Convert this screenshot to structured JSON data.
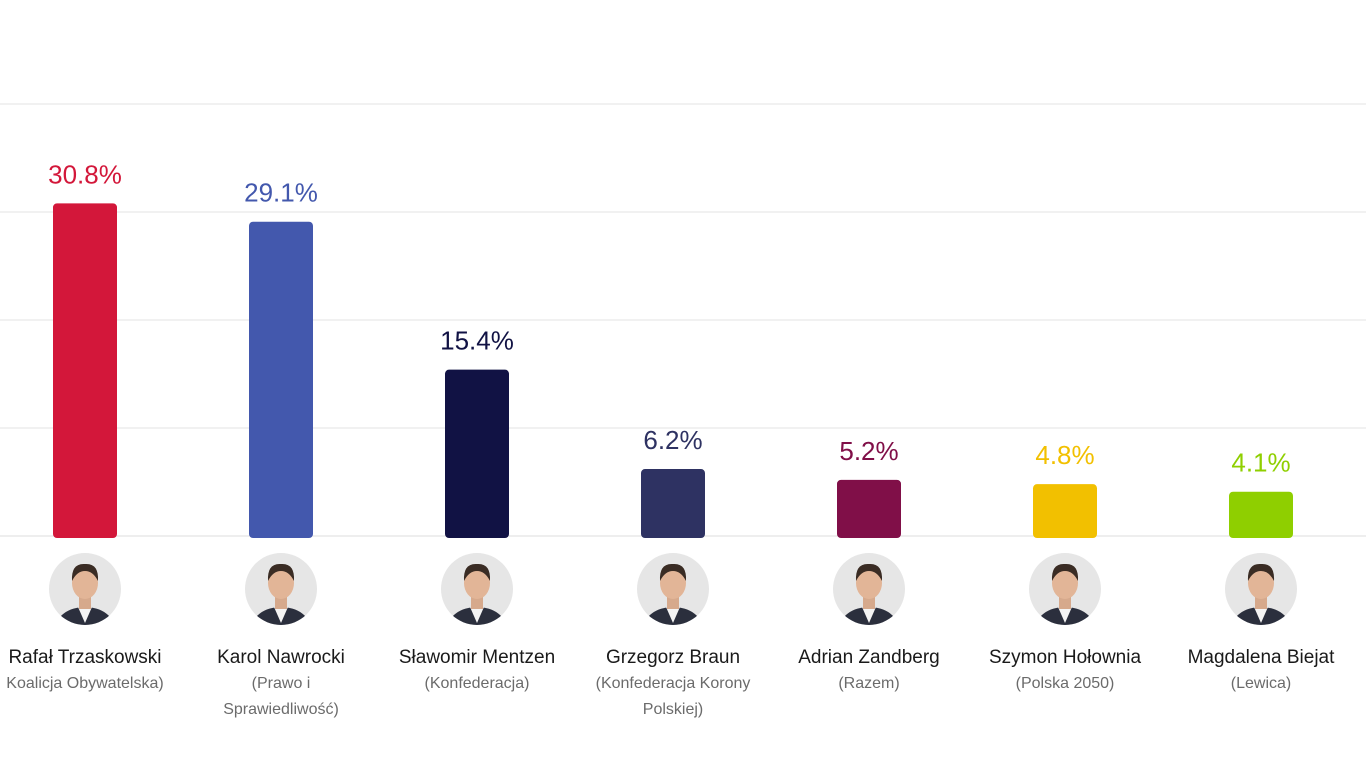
{
  "chart_data": {
    "type": "bar",
    "title": "",
    "xlabel": "",
    "ylabel": "",
    "unit": "%",
    "ylim": [
      0,
      40
    ],
    "grid": true,
    "gridlines_y": [
      10,
      20,
      30,
      40
    ],
    "categories": [
      "Rafał Trzaskowski",
      "Karol Nawrocki",
      "Sławomir Mentzen",
      "Grzegorz Braun",
      "Adrian Zandberg",
      "Szymon Hołownia",
      "Magdalena Biejat"
    ],
    "values": [
      30.8,
      29.1,
      15.4,
      6.2,
      5.2,
      4.8,
      4.1
    ],
    "value_labels": [
      "30.8%",
      "29.1%",
      "15.4%",
      "6.2%",
      "5.2%",
      "4.8%",
      "4.1%"
    ],
    "parties": [
      [
        "Koalicja Obywatelska)"
      ],
      [
        "(Prawo i",
        "Sprawiedliwość)"
      ],
      [
        "(Konfederacja)"
      ],
      [
        "(Konfederacja Korony",
        "Polskiej)"
      ],
      [
        "(Razem)"
      ],
      [
        "(Polska 2050)"
      ],
      [
        "(Lewica)"
      ]
    ],
    "colors": [
      "#d3173a",
      "#4358ad",
      "#111244",
      "#2e3262",
      "#800f48",
      "#f2c000",
      "#8fcf00"
    ],
    "label_colors": [
      "#d3173a",
      "#4358ad",
      "#111244",
      "#2e3262",
      "#800f48",
      "#f2c000",
      "#8fcf00"
    ],
    "avatars": [
      "person-photo-icon",
      "person-photo-icon",
      "person-photo-icon",
      "person-photo-icon",
      "person-photo-icon",
      "person-photo-icon",
      "person-photo-icon"
    ]
  }
}
